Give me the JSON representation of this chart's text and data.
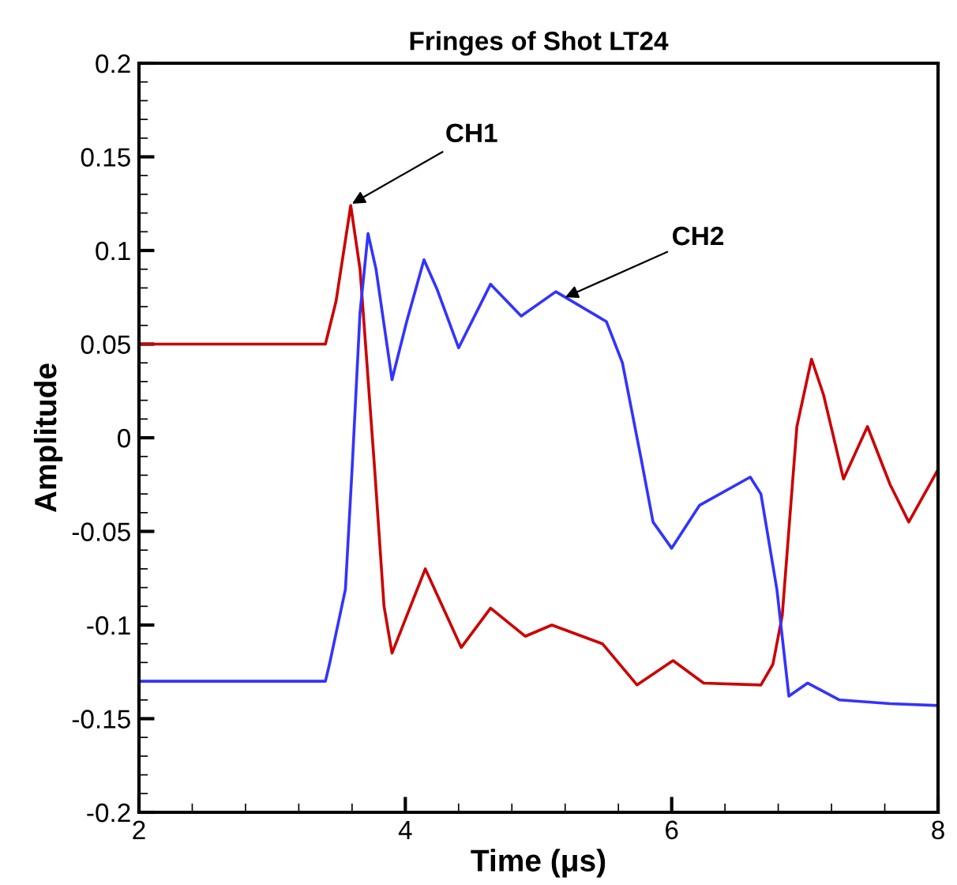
{
  "chart_data": {
    "type": "line",
    "title": "Fringes of Shot LT24",
    "xlabel": "Time (μs)",
    "ylabel": "Amplitude",
    "xlim": [
      2,
      8
    ],
    "xticks": [
      2,
      4,
      6,
      8
    ],
    "ylim": [
      -0.2,
      0.2
    ],
    "yticks": [
      -0.2,
      -0.15,
      -0.1,
      -0.05,
      0,
      0.05,
      0.1,
      0.15,
      0.2
    ],
    "grid": false,
    "legend": false,
    "marker": "none",
    "line_style": "solid",
    "series": [
      {
        "color": "#cc0000",
        "x": [
          2,
          2.5,
          3,
          3.4,
          3.48,
          3.59,
          3.66,
          3.77,
          3.84,
          3.9,
          4.15,
          4.42,
          4.64,
          4.9,
          5.1,
          5.48,
          5.74,
          6.01,
          6.24,
          6.67,
          6.76,
          6.83,
          6.94,
          7.05,
          7.14,
          7.29,
          7.47,
          7.64,
          7.78,
          8.0
        ],
        "values": [
          0.05,
          0.05,
          0.05,
          0.05,
          0.073,
          0.124,
          0.09,
          -0.017,
          -0.09,
          -0.115,
          -0.07,
          -0.112,
          -0.091,
          -0.106,
          -0.1,
          -0.11,
          -0.132,
          -0.119,
          -0.131,
          -0.132,
          -0.121,
          -0.095,
          0.006,
          0.042,
          0.023,
          -0.022,
          0.006,
          -0.025,
          -0.045,
          -0.017
        ]
      },
      {
        "color": "#3333ff",
        "x": [
          2,
          2.5,
          3,
          3.4,
          3.43,
          3.55,
          3.6,
          3.66,
          3.72,
          3.78,
          3.9,
          4.01,
          4.14,
          4.24,
          4.4,
          4.64,
          4.87,
          5.13,
          5.51,
          5.63,
          5.77,
          5.86,
          6.0,
          6.21,
          6.59,
          6.67,
          6.79,
          6.88,
          7.02,
          7.26,
          7.64,
          8.0
        ],
        "values": [
          -0.13,
          -0.13,
          -0.13,
          -0.13,
          -0.121,
          -0.081,
          -0.017,
          0.067,
          0.109,
          0.09,
          0.031,
          0.062,
          0.095,
          0.079,
          0.048,
          0.082,
          0.065,
          0.078,
          0.062,
          0.04,
          -0.011,
          -0.045,
          -0.059,
          -0.036,
          -0.021,
          -0.03,
          -0.081,
          -0.138,
          -0.131,
          -0.14,
          -0.142,
          -0.143
        ]
      }
    ],
    "annotations": [
      {
        "text": "CH1",
        "x": 3.6,
        "y": 0.125
      },
      {
        "text": "CH2",
        "x": 5.2,
        "y": 0.075
      }
    ]
  }
}
